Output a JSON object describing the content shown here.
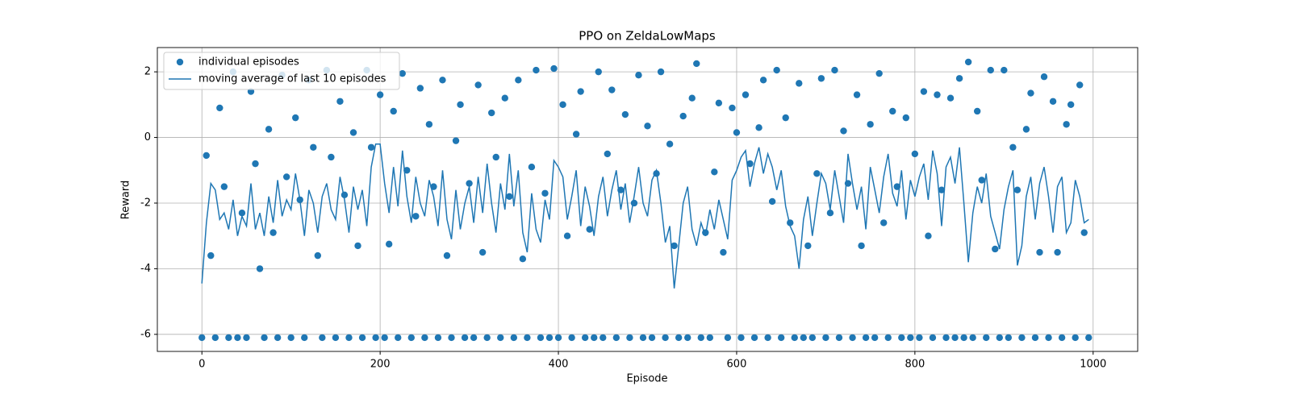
{
  "chart_data": {
    "type": "scatter",
    "title": "PPO on ZeldaLowMaps",
    "x_label": "Episode",
    "y_label": "Reward",
    "xlim": [
      -50,
      1050
    ],
    "ylim": [
      -6.52,
      2.74
    ],
    "xticks": [
      0,
      200,
      400,
      600,
      800,
      1000
    ],
    "yticks": [
      -6,
      -4,
      -2,
      0,
      2
    ],
    "grid": true,
    "legend": "upper left",
    "x": [
      0,
      5,
      10,
      15,
      20,
      25,
      30,
      35,
      40,
      45,
      50,
      55,
      60,
      65,
      70,
      75,
      80,
      85,
      90,
      95,
      100,
      105,
      110,
      115,
      120,
      125,
      130,
      135,
      140,
      145,
      150,
      155,
      160,
      165,
      170,
      175,
      180,
      185,
      190,
      195,
      200,
      205,
      210,
      215,
      220,
      225,
      230,
      235,
      240,
      245,
      250,
      255,
      260,
      265,
      270,
      275,
      280,
      285,
      290,
      295,
      300,
      305,
      310,
      315,
      320,
      325,
      330,
      335,
      340,
      345,
      350,
      355,
      360,
      365,
      370,
      375,
      380,
      385,
      390,
      395,
      400,
      405,
      410,
      415,
      420,
      425,
      430,
      435,
      440,
      445,
      450,
      455,
      460,
      465,
      470,
      475,
      480,
      485,
      490,
      495,
      500,
      505,
      510,
      515,
      520,
      525,
      530,
      535,
      540,
      545,
      550,
      555,
      560,
      565,
      570,
      575,
      580,
      585,
      590,
      595,
      600,
      605,
      610,
      615,
      620,
      625,
      630,
      635,
      640,
      645,
      650,
      655,
      660,
      665,
      670,
      675,
      680,
      685,
      690,
      695,
      700,
      705,
      710,
      715,
      720,
      725,
      730,
      735,
      740,
      745,
      750,
      755,
      760,
      765,
      770,
      775,
      780,
      785,
      790,
      795,
      800,
      805,
      810,
      815,
      820,
      825,
      830,
      835,
      840,
      845,
      850,
      855,
      860,
      865,
      870,
      875,
      880,
      885,
      890,
      895,
      900,
      905,
      910,
      915,
      920,
      925,
      930,
      935,
      940,
      945,
      950,
      955,
      960,
      965,
      970,
      975,
      980,
      985,
      990,
      995
    ],
    "series": [
      {
        "name": "individual episodes",
        "type": "scatter",
        "color": "#1f77b4",
        "values": [
          -6.1,
          -0.55,
          -3.6,
          -6.1,
          0.9,
          -1.5,
          -6.1,
          2.0,
          -6.1,
          -2.3,
          -6.1,
          1.4,
          -0.8,
          -4.0,
          -6.1,
          0.25,
          -2.9,
          -6.1,
          1.9,
          -1.2,
          -6.1,
          0.6,
          -1.9,
          -6.1,
          1.75,
          -0.3,
          -3.6,
          -6.1,
          2.05,
          -0.6,
          -6.1,
          1.1,
          -1.75,
          -6.1,
          0.15,
          -3.3,
          -6.1,
          2.05,
          -0.3,
          -6.1,
          1.3,
          -6.1,
          -3.25,
          0.8,
          -6.1,
          1.95,
          -1.0,
          -6.1,
          -2.4,
          1.5,
          -6.1,
          0.4,
          -1.5,
          -6.1,
          1.75,
          -3.6,
          -6.1,
          -0.1,
          1.0,
          -6.1,
          -1.4,
          -6.1,
          1.6,
          -3.5,
          -6.1,
          0.75,
          -0.6,
          -6.1,
          1.2,
          -1.8,
          -6.1,
          1.75,
          -3.7,
          -6.1,
          -0.9,
          2.05,
          -6.1,
          -1.7,
          -6.1,
          2.1,
          -6.1,
          1.0,
          -3.0,
          -6.1,
          0.1,
          1.4,
          -6.1,
          -2.8,
          -6.1,
          2.0,
          -6.1,
          -0.5,
          1.45,
          -6.1,
          -1.6,
          0.7,
          -6.1,
          -2.0,
          1.9,
          -6.1,
          0.35,
          -6.1,
          -1.1,
          2.0,
          -6.1,
          -0.2,
          -3.3,
          -6.1,
          0.65,
          -6.1,
          1.2,
          2.25,
          -6.1,
          -2.9,
          -6.1,
          -1.05,
          1.05,
          -3.5,
          -6.1,
          0.9,
          0.15,
          -6.1,
          1.3,
          -0.8,
          -6.1,
          0.3,
          1.75,
          -6.1,
          -1.95,
          2.05,
          -6.1,
          0.6,
          -2.6,
          -6.1,
          1.65,
          -6.1,
          -3.3,
          -6.1,
          -1.1,
          1.8,
          -6.1,
          -2.3,
          2.05,
          -6.1,
          0.2,
          -1.4,
          -6.1,
          1.3,
          -3.3,
          -6.1,
          0.4,
          -6.1,
          1.95,
          -2.6,
          -6.1,
          0.8,
          -1.5,
          -6.1,
          0.6,
          -6.1,
          -0.5,
          -6.1,
          1.4,
          -3.0,
          -6.1,
          1.3,
          -1.6,
          -6.1,
          1.2,
          -6.1,
          1.8,
          -6.1,
          2.3,
          -6.1,
          0.8,
          -1.3,
          -6.1,
          2.05,
          -3.4,
          -6.1,
          2.05,
          -6.1,
          -0.3,
          -1.6,
          -6.1,
          0.25,
          1.35,
          -6.1,
          -3.5,
          1.85,
          -6.1,
          1.1,
          -3.5,
          -6.1,
          0.4,
          1.0,
          -6.1,
          1.6,
          -2.9,
          -6.1
        ]
      },
      {
        "name": "moving average of last 10 episodes",
        "type": "line",
        "color": "#1f77b4",
        "values": [
          -4.45,
          -2.6,
          -1.4,
          -1.6,
          -2.5,
          -2.3,
          -2.8,
          -1.9,
          -3.0,
          -2.4,
          -2.7,
          -1.4,
          -2.8,
          -2.3,
          -3.0,
          -1.8,
          -2.6,
          -1.3,
          -2.4,
          -1.9,
          -2.2,
          -1.1,
          -1.9,
          -3.0,
          -1.6,
          -2.0,
          -2.9,
          -1.8,
          -1.4,
          -2.2,
          -2.5,
          -1.2,
          -1.9,
          -2.9,
          -1.5,
          -2.2,
          -1.6,
          -2.7,
          -0.9,
          -0.2,
          -0.2,
          -1.4,
          -2.3,
          -0.9,
          -2.1,
          -0.4,
          -1.8,
          -2.6,
          -1.2,
          -2.0,
          -2.4,
          -1.3,
          -1.8,
          -2.7,
          -1.0,
          -2.5,
          -3.1,
          -1.6,
          -2.8,
          -2.0,
          -1.5,
          -2.6,
          -1.2,
          -2.3,
          -0.8,
          -2.0,
          -2.9,
          -1.4,
          -2.2,
          -0.5,
          -2.1,
          -1.0,
          -2.9,
          -3.5,
          -1.7,
          -2.8,
          -3.2,
          -1.9,
          -2.5,
          -0.7,
          -0.9,
          -1.2,
          -2.5,
          -1.8,
          -1.0,
          -2.7,
          -1.5,
          -2.1,
          -3.0,
          -1.8,
          -1.2,
          -2.4,
          -1.6,
          -1.0,
          -2.2,
          -1.4,
          -2.6,
          -1.8,
          -0.9,
          -2.0,
          -2.4,
          -1.3,
          -1.0,
          -2.0,
          -3.2,
          -2.7,
          -4.6,
          -3.3,
          -2.0,
          -1.5,
          -2.8,
          -3.3,
          -2.6,
          -3.0,
          -2.2,
          -2.8,
          -1.9,
          -2.5,
          -3.1,
          -1.3,
          -1.0,
          -0.6,
          -0.4,
          -1.5,
          -0.8,
          -0.3,
          -1.1,
          -0.5,
          -0.9,
          -1.6,
          -1.0,
          -2.1,
          -2.7,
          -3.0,
          -4.0,
          -2.5,
          -1.8,
          -3.0,
          -2.0,
          -1.1,
          -1.4,
          -2.2,
          -1.0,
          -1.8,
          -2.6,
          -0.5,
          -1.4,
          -2.2,
          -1.5,
          -2.8,
          -0.9,
          -1.6,
          -2.3,
          -1.2,
          -0.5,
          -1.7,
          -2.1,
          -1.0,
          -2.5,
          -1.3,
          -1.8,
          -1.2,
          -0.8,
          -1.9,
          -0.4,
          -1.1,
          -2.7,
          -0.9,
          -0.6,
          -1.4,
          -0.3,
          -2.0,
          -3.8,
          -2.3,
          -1.5,
          -2.0,
          -1.1,
          -2.4,
          -2.9,
          -3.4,
          -2.2,
          -1.5,
          -1.0,
          -3.9,
          -3.3,
          -1.8,
          -1.2,
          -2.5,
          -1.4,
          -0.9,
          -1.8,
          -2.9,
          -1.5,
          -1.2,
          -2.9,
          -2.6,
          -1.3,
          -1.8,
          -2.6,
          -2.5
        ]
      }
    ]
  }
}
